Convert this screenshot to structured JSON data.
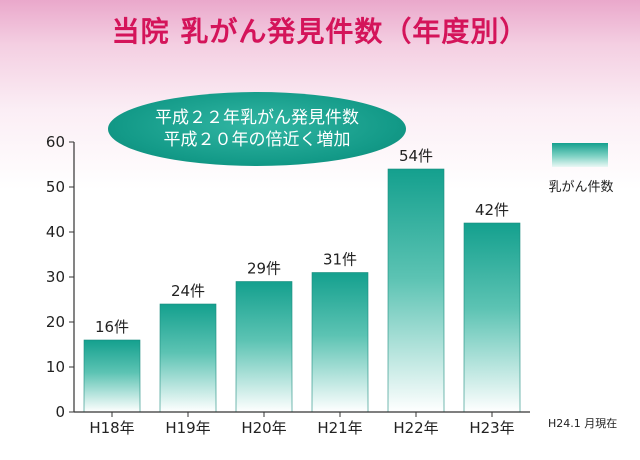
{
  "title": "当院 乳がん発見件数（年度別）",
  "callout": {
    "line1": "平成２２年乳がん発見件数",
    "line2": "平成２０年の倍近く増加"
  },
  "legend": {
    "label": "乳がん件数"
  },
  "as_of": "H24.1 月現在",
  "colors": {
    "title": "#d4145a",
    "bar_top": "#14a08e",
    "bar_bottom": "#ffffff",
    "callout": "#139a88"
  },
  "chart_data": {
    "type": "bar",
    "categories": [
      "H18年",
      "H19年",
      "H20年",
      "H21年",
      "H22年",
      "H23年"
    ],
    "values": [
      16,
      24,
      29,
      31,
      54,
      42
    ],
    "data_labels": [
      "16件",
      "24件",
      "29件",
      "31件",
      "54件",
      "42件"
    ],
    "series": [
      {
        "name": "乳がん件数",
        "values": [
          16,
          24,
          29,
          31,
          54,
          42
        ]
      }
    ],
    "ylim": [
      0,
      60
    ],
    "yticks": [
      0,
      10,
      20,
      30,
      40,
      50,
      60
    ],
    "grid": false,
    "legend_position": "right"
  }
}
